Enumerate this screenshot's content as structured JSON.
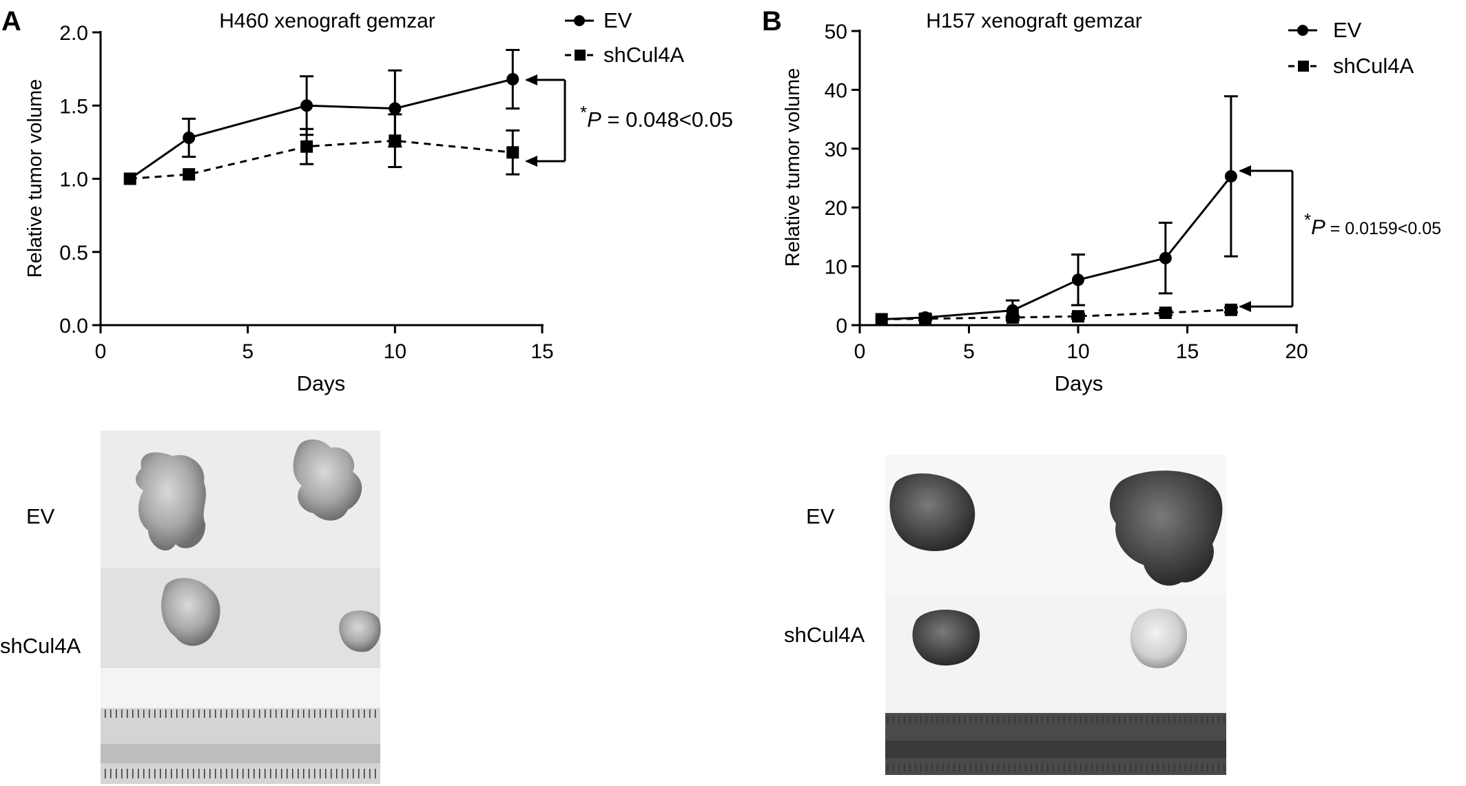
{
  "panels": [
    {
      "label": "A",
      "photo_labels": {
        "ev": "EV",
        "sh": "shCul4A"
      }
    },
    {
      "label": "B",
      "photo_labels": {
        "ev": "EV",
        "sh": "shCul4A"
      }
    }
  ],
  "chart_data": [
    {
      "type": "line",
      "title": "H460  xenograft  gemzar",
      "xlabel": "Days",
      "ylabel": "Relative tumor volume",
      "xlim": [
        0,
        15
      ],
      "ylim": [
        0,
        2.0
      ],
      "x_ticks": [
        "0",
        "5",
        "10",
        "15"
      ],
      "y_ticks": [
        "0.0",
        "0.5",
        "1.0",
        "1.5",
        "2.0"
      ],
      "legend_position": "top-right",
      "series": [
        {
          "name": "EV",
          "marker": "circle",
          "line": "solid",
          "x": [
            1,
            3,
            7,
            10,
            14
          ],
          "y": [
            1.0,
            1.28,
            1.5,
            1.48,
            1.68
          ],
          "err": [
            0,
            0.13,
            0.2,
            0.26,
            0.2
          ]
        },
        {
          "name": "shCul4A",
          "marker": "square",
          "line": "dashed",
          "x": [
            1,
            3,
            7,
            10,
            14
          ],
          "y": [
            1.0,
            1.03,
            1.22,
            1.26,
            1.18
          ],
          "err": [
            0,
            0,
            0.12,
            0.18,
            0.15
          ]
        }
      ],
      "annotation": {
        "star": "*",
        "p": "P",
        "rest": " = 0.048<0.05"
      }
    },
    {
      "type": "line",
      "title": "H157  xenograft  gemzar",
      "xlabel": "Days",
      "ylabel": "Relative tumor volume",
      "xlim": [
        0,
        20
      ],
      "ylim": [
        0,
        50
      ],
      "x_ticks": [
        "0",
        "5",
        "10",
        "15",
        "20"
      ],
      "y_ticks": [
        "0",
        "10",
        "20",
        "30",
        "40",
        "50"
      ],
      "legend_position": "top-right",
      "series": [
        {
          "name": "EV",
          "marker": "circle",
          "line": "solid",
          "x": [
            1,
            3,
            7,
            10,
            14,
            17
          ],
          "y": [
            1.0,
            1.3,
            2.5,
            7.7,
            11.4,
            25.3
          ],
          "err": [
            0,
            0.5,
            1.7,
            4.3,
            6.0,
            13.6
          ]
        },
        {
          "name": "shCul4A",
          "marker": "square",
          "line": "dashed",
          "x": [
            1,
            3,
            7,
            10,
            14,
            17
          ],
          "y": [
            1.0,
            1.1,
            1.3,
            1.5,
            2.1,
            2.6
          ],
          "err": [
            0,
            0.2,
            0.3,
            0.4,
            0.4,
            0.4
          ]
        }
      ],
      "annotation": {
        "star": "*",
        "p": "P",
        "rest": " = 0.0159<0.05"
      }
    }
  ]
}
